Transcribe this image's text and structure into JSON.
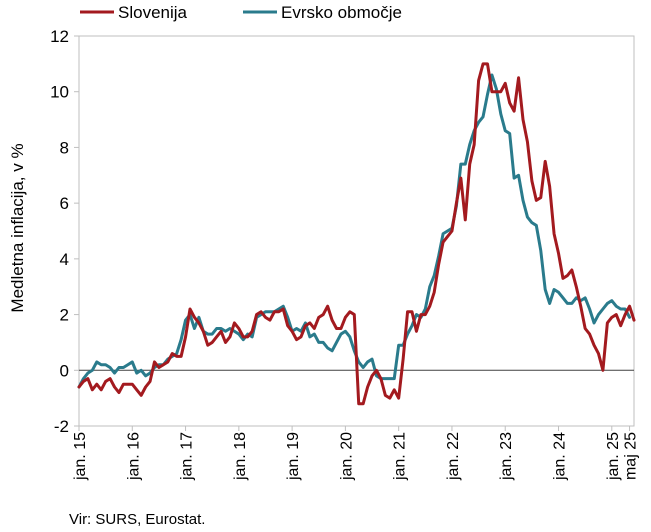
{
  "chart_data": {
    "type": "line",
    "ylabel": "Medletna inflacija, v %",
    "xlabel": "",
    "ylim": [
      -2,
      12
    ],
    "yticks": [
      -2,
      0,
      2,
      4,
      6,
      8,
      10,
      12
    ],
    "xlim": [
      0,
      125
    ],
    "xticks": [
      {
        "pos": 0,
        "label": "jan. 15"
      },
      {
        "pos": 12,
        "label": "jan. 16"
      },
      {
        "pos": 24,
        "label": "jan. 17"
      },
      {
        "pos": 36,
        "label": "jan. 18"
      },
      {
        "pos": 48,
        "label": "jan. 19"
      },
      {
        "pos": 60,
        "label": "jan. 20"
      },
      {
        "pos": 72,
        "label": "jan. 21"
      },
      {
        "pos": 84,
        "label": "jan. 22"
      },
      {
        "pos": 96,
        "label": "jan. 23"
      },
      {
        "pos": 108,
        "label": "jan. 24"
      },
      {
        "pos": 120,
        "label": "jan. 25"
      },
      {
        "pos": 124,
        "label": "maj 25"
      }
    ],
    "grid": "none",
    "legend_position": "top",
    "source": "Vir: SURS, Eurostat.",
    "series": [
      {
        "name": "Slovenija",
        "color": "#a31a1f",
        "values": [
          -0.6,
          -0.4,
          -0.3,
          -0.7,
          -0.5,
          -0.7,
          -0.4,
          -0.3,
          -0.6,
          -0.8,
          -0.5,
          -0.5,
          -0.5,
          -0.7,
          -0.9,
          -0.6,
          -0.4,
          0.3,
          0.1,
          0.2,
          0.3,
          0.6,
          0.5,
          0.5,
          1.2,
          2.2,
          1.9,
          1.7,
          1.4,
          0.9,
          1.0,
          1.2,
          1.4,
          1.0,
          1.2,
          1.7,
          1.5,
          1.2,
          1.2,
          1.4,
          2.0,
          2.1,
          1.9,
          1.8,
          2.1,
          2.1,
          2.2,
          1.6,
          1.4,
          1.1,
          1.2,
          1.6,
          1.7,
          1.5,
          1.9,
          2.0,
          2.3,
          1.8,
          1.5,
          1.5,
          1.9,
          2.1,
          2.0,
          -1.2,
          -1.2,
          -0.6,
          -0.2,
          0.0,
          -0.3,
          -0.9,
          -1.0,
          -0.7,
          -1.0,
          0.4,
          2.1,
          2.1,
          1.4,
          2.0,
          2.0,
          2.3,
          2.8,
          3.8,
          4.6,
          4.8,
          5.0,
          6.0,
          6.9,
          5.4,
          7.4,
          8.1,
          10.4,
          11.0,
          11.0,
          10.0,
          10.0,
          10.0,
          10.3,
          9.6,
          9.3,
          10.5,
          9.0,
          8.2,
          6.8,
          6.1,
          6.2,
          7.5,
          6.6,
          4.9,
          4.2,
          3.3,
          3.4,
          3.6,
          3.0,
          2.3,
          1.5,
          1.3,
          0.9,
          0.6,
          0.0,
          1.7,
          1.9,
          2.0,
          1.6,
          2.0,
          2.3,
          1.8
        ]
      },
      {
        "name": "Evrsko območje",
        "color": "#2a7b8c",
        "values": [
          -0.6,
          -0.3,
          -0.1,
          0.0,
          0.3,
          0.2,
          0.2,
          0.1,
          -0.1,
          0.1,
          0.1,
          0.2,
          0.3,
          -0.1,
          0.0,
          -0.2,
          -0.1,
          0.1,
          0.2,
          0.2,
          0.4,
          0.5,
          0.6,
          1.1,
          1.8,
          2.0,
          1.5,
          1.9,
          1.4,
          1.3,
          1.3,
          1.5,
          1.5,
          1.4,
          1.5,
          1.4,
          1.3,
          1.1,
          1.3,
          1.2,
          1.9,
          2.0,
          2.1,
          2.1,
          2.1,
          2.2,
          2.3,
          1.9,
          1.4,
          1.5,
          1.4,
          1.7,
          1.2,
          1.3,
          1.0,
          1.0,
          0.8,
          0.7,
          1.0,
          1.3,
          1.4,
          1.2,
          0.7,
          0.3,
          0.1,
          0.3,
          0.4,
          -0.2,
          -0.3,
          -0.3,
          -0.3,
          -0.3,
          0.9,
          0.9,
          1.3,
          1.6,
          2.0,
          1.9,
          2.2,
          3.0,
          3.4,
          4.1,
          4.9,
          5.0,
          5.1,
          5.9,
          7.4,
          7.4,
          8.1,
          8.6,
          8.9,
          9.1,
          9.9,
          10.6,
          10.1,
          9.2,
          8.6,
          8.5,
          6.9,
          7.0,
          6.1,
          5.5,
          5.3,
          5.2,
          4.3,
          2.9,
          2.4,
          2.9,
          2.8,
          2.6,
          2.4,
          2.4,
          2.6,
          2.5,
          2.6,
          2.2,
          1.7,
          2.0,
          2.2,
          2.4,
          2.5,
          2.3,
          2.2,
          2.2,
          1.9
        ]
      }
    ]
  }
}
